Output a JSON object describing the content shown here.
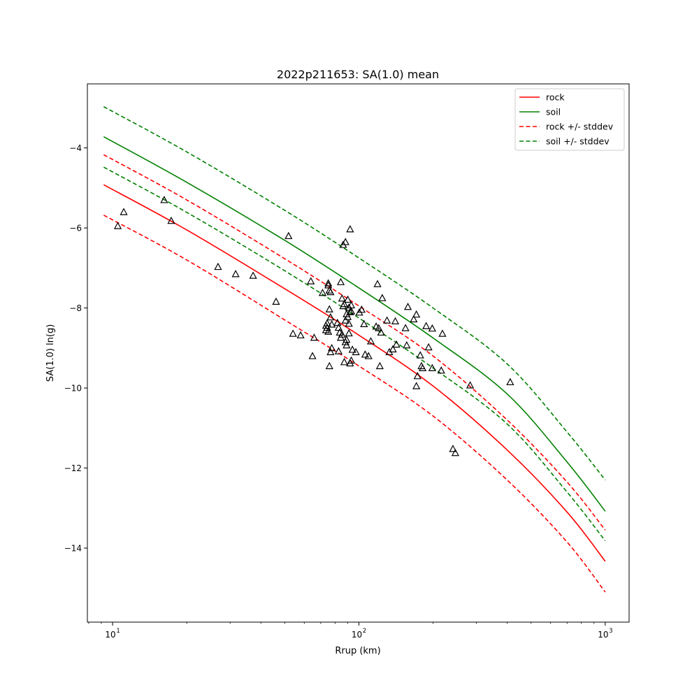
{
  "chart_data": {
    "type": "scatter",
    "title": "2022p211653: SA(1.0) mean",
    "xlabel": "Rrup (km)",
    "ylabel": "SA(1.0) ln(g)",
    "xscale": "log",
    "xlim": [
      7.9,
      1250
    ],
    "ylim": [
      -15.85,
      -2.4
    ],
    "grid": false,
    "legend_position": "upper-right",
    "x_ticks": [
      {
        "value": 10,
        "label": "10",
        "sup": "1"
      },
      {
        "value": 100,
        "label": "10",
        "sup": "2"
      },
      {
        "value": 1000,
        "label": "10",
        "sup": "3"
      }
    ],
    "y_ticks": [
      -4,
      -6,
      -8,
      -10,
      -12,
      -14
    ],
    "y_tick_labels": [
      "−4",
      "−6",
      "−8",
      "−10",
      "−12",
      "−14"
    ],
    "series": [
      {
        "name": "rock",
        "kind": "line",
        "style": "solid",
        "color": "#ff0000",
        "x": [
          9.2,
          20,
          50,
          100,
          200,
          400,
          700,
          1000
        ],
        "y": [
          -4.92,
          -6.05,
          -7.52,
          -8.68,
          -9.95,
          -11.55,
          -13.1,
          -14.33
        ]
      },
      {
        "name": "soil",
        "kind": "line",
        "style": "solid",
        "color": "#008000",
        "x": [
          9.2,
          20,
          50,
          100,
          200,
          400,
          700,
          1000
        ],
        "y": [
          -3.72,
          -4.86,
          -6.31,
          -7.5,
          -8.75,
          -10.15,
          -11.85,
          -13.08
        ]
      },
      {
        "name": "rock +/- stddev",
        "kind": "line",
        "style": "dashed",
        "color": "#ff0000",
        "x": [
          9.2,
          20,
          50,
          100,
          200,
          400,
          700,
          1000
        ],
        "y": [
          -4.17,
          -5.3,
          -6.77,
          -7.95,
          -9.2,
          -10.8,
          -12.35,
          -13.55
        ]
      },
      {
        "kind": "line",
        "style": "dashed",
        "color": "#ff0000",
        "legend": false,
        "x": [
          9.2,
          20,
          50,
          100,
          200,
          400,
          700,
          1000
        ],
        "y": [
          -5.68,
          -6.8,
          -8.3,
          -9.45,
          -10.7,
          -12.3,
          -13.85,
          -15.1
        ]
      },
      {
        "name": "soil +/- stddev",
        "kind": "line",
        "style": "dashed",
        "color": "#008000",
        "x": [
          9.2,
          20,
          50,
          100,
          200,
          400,
          700,
          1000
        ],
        "y": [
          -2.97,
          -4.1,
          -5.56,
          -6.75,
          -8.0,
          -9.4,
          -11.1,
          -12.3
        ]
      },
      {
        "kind": "line",
        "style": "dashed",
        "color": "#008000",
        "legend": false,
        "x": [
          9.2,
          20,
          50,
          100,
          200,
          400,
          700,
          1000
        ],
        "y": [
          -4.48,
          -5.61,
          -7.07,
          -8.25,
          -9.5,
          -10.9,
          -12.6,
          -13.82
        ]
      },
      {
        "kind": "scatter",
        "marker": "triangle-open",
        "color": "#000000",
        "legend": false,
        "points": [
          [
            10.5,
            -5.95
          ],
          [
            11.1,
            -5.6
          ],
          [
            16.2,
            -5.3
          ],
          [
            17.3,
            -5.82
          ],
          [
            26.8,
            -6.97
          ],
          [
            31.6,
            -7.15
          ],
          [
            37.2,
            -7.19
          ],
          [
            46.1,
            -7.84
          ],
          [
            51.8,
            -6.2
          ],
          [
            54.0,
            -8.64
          ],
          [
            58.0,
            -8.68
          ],
          [
            63.8,
            -7.33
          ],
          [
            64.8,
            -9.2
          ],
          [
            65.8,
            -8.74
          ],
          [
            71.2,
            -7.62
          ],
          [
            73.5,
            -8.44
          ],
          [
            73.5,
            -8.55
          ],
          [
            74.3,
            -8.38
          ],
          [
            74.3,
            -8.49
          ],
          [
            75.1,
            -8.59
          ],
          [
            75.1,
            -7.38
          ],
          [
            75.9,
            -7.56
          ],
          [
            75.1,
            -7.43
          ],
          [
            76.7,
            -7.6
          ],
          [
            75.9,
            -8.03
          ],
          [
            76.7,
            -8.23
          ],
          [
            77.6,
            -8.41
          ],
          [
            75.9,
            -9.45
          ],
          [
            76.7,
            -9.1
          ],
          [
            77.6,
            -9.0
          ],
          [
            81.8,
            -8.37
          ],
          [
            82.7,
            -8.49
          ],
          [
            83.6,
            -8.61
          ],
          [
            84.4,
            -8.74
          ],
          [
            85.4,
            -8.66
          ],
          [
            82.7,
            -9.08
          ],
          [
            84.4,
            -7.35
          ],
          [
            85.4,
            -7.76
          ],
          [
            86.3,
            -7.95
          ],
          [
            87.2,
            -7.9
          ],
          [
            87.2,
            -9.35
          ],
          [
            88.2,
            -8.85
          ],
          [
            89.1,
            -8.93
          ],
          [
            89.1,
            -8.79
          ],
          [
            88.2,
            -8.31
          ],
          [
            89.1,
            -8.15
          ],
          [
            90.1,
            -8.22
          ],
          [
            91.1,
            -8.39
          ],
          [
            90.1,
            -7.79
          ],
          [
            91.1,
            -7.99
          ],
          [
            92.1,
            -8.1
          ],
          [
            93.1,
            -7.93
          ],
          [
            93.1,
            -8.08
          ],
          [
            91.1,
            -8.63
          ],
          [
            92.1,
            -9.38
          ],
          [
            93.1,
            -9.31
          ],
          [
            94.1,
            -9.04
          ],
          [
            86.3,
            -6.42
          ],
          [
            88.2,
            -6.35
          ],
          [
            92.1,
            -6.03
          ],
          [
            97.2,
            -9.1
          ],
          [
            100.4,
            -8.11
          ],
          [
            102.6,
            -8.04
          ],
          [
            104.9,
            -8.4
          ],
          [
            106.0,
            -9.16
          ],
          [
            109.4,
            -9.2
          ],
          [
            111.8,
            -8.83
          ],
          [
            117.5,
            -8.46
          ],
          [
            119.0,
            -7.4
          ],
          [
            120.3,
            -8.5
          ],
          [
            121.6,
            -9.45
          ],
          [
            123.0,
            -8.61
          ],
          [
            124.4,
            -7.75
          ],
          [
            130.0,
            -8.31
          ],
          [
            132.9,
            -9.1
          ],
          [
            137.4,
            -9.03
          ],
          [
            140.5,
            -8.33
          ],
          [
            142.0,
            -8.91
          ],
          [
            154.6,
            -8.5
          ],
          [
            156.3,
            -8.93
          ],
          [
            158.1,
            -7.97
          ],
          [
            166.9,
            -8.28
          ],
          [
            171.1,
            -8.16
          ],
          [
            172.9,
            -9.7
          ],
          [
            171.1,
            -9.95
          ],
          [
            177.4,
            -9.18
          ],
          [
            179.4,
            -9.45
          ],
          [
            181.4,
            -9.5
          ],
          [
            187.5,
            -8.45
          ],
          [
            191.8,
            -8.98
          ],
          [
            198.5,
            -8.51
          ],
          [
            198.5,
            -9.5
          ],
          [
            215.9,
            -9.56
          ],
          [
            218.3,
            -8.64
          ],
          [
            240.8,
            -11.52
          ],
          [
            246.3,
            -11.62
          ],
          [
            282.8,
            -9.93
          ],
          [
            411.3,
            -9.85
          ]
        ]
      }
    ]
  }
}
